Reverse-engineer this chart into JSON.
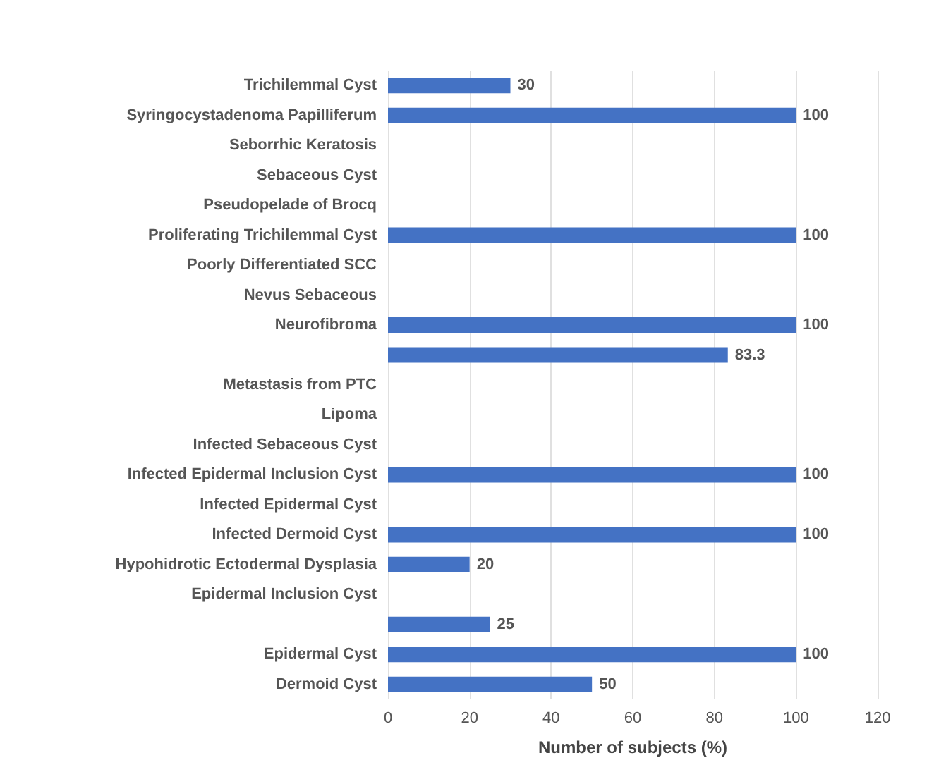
{
  "chart_data": {
    "type": "bar",
    "orientation": "horizontal",
    "categories": [
      "Trichilemmal Cyst",
      "Syringocystadenoma Papilliferum",
      "Seborrhic Keratosis",
      "Sebaceous Cyst",
      "Pseudopelade of Brocq",
      "Proliferating Trichilemmal Cyst",
      "Poorly Differentiated SCC",
      "Nevus Sebaceous",
      "Neurofibroma",
      null,
      "Metastasis from PTC",
      "Lipoma",
      "Infected Sebaceous Cyst",
      "Infected Epidermal Inclusion Cyst",
      "Infected Epidermal Cyst",
      "Infected Dermoid Cyst",
      "Hypohidrotic Ectodermal Dysplasia",
      "Epidermal Inclusion Cyst",
      null,
      "Epidermal Cyst",
      "Dermoid Cyst"
    ],
    "values": [
      30,
      100,
      null,
      null,
      null,
      100,
      null,
      null,
      100,
      83.3,
      null,
      null,
      null,
      100,
      null,
      100,
      20,
      null,
      25,
      100,
      50
    ],
    "color": "#4472c4",
    "xlim": [
      0,
      120
    ],
    "xticks": [
      0,
      20,
      40,
      60,
      80,
      100,
      120
    ],
    "xlabel": "Number of subjects (%)",
    "grid": "x",
    "data_labels": true
  }
}
